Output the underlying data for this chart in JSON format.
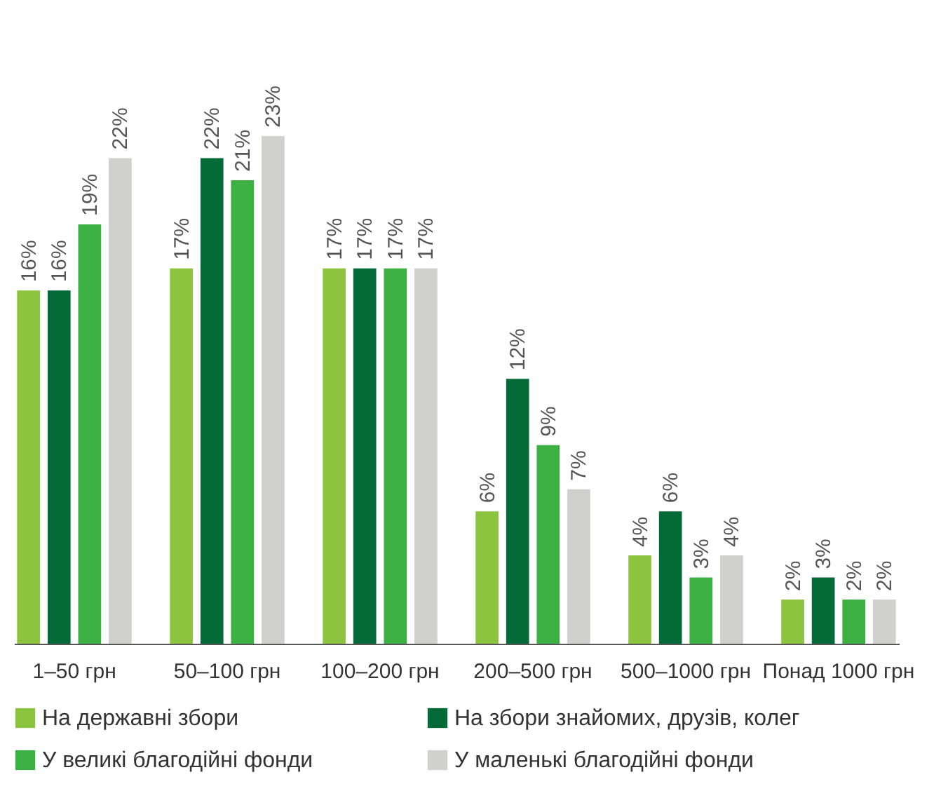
{
  "chart_data": {
    "type": "bar",
    "categories": [
      "1–50 грн",
      "50–100 грн",
      "100–200 грн",
      "200–500 грн",
      "500–1000 грн",
      "Понад 1000 грн"
    ],
    "series": [
      {
        "name": "На державні збори",
        "color": "#8cc43f",
        "values": [
          16,
          17,
          17,
          6,
          4,
          2
        ],
        "value_labels": [
          "16%",
          "17%",
          "17%",
          "6%",
          "4%",
          "2%"
        ]
      },
      {
        "name": "На збори знайомих, друзів, колег",
        "color": "#046a38",
        "values": [
          16,
          22,
          17,
          12,
          6,
          3
        ],
        "value_labels": [
          "16%",
          "22%",
          "17%",
          "12%",
          "6%",
          "3%"
        ]
      },
      {
        "name": "У великі благодійні фонди",
        "color": "#3cb043",
        "values": [
          19,
          21,
          17,
          9,
          3,
          2
        ],
        "value_labels": [
          "19%",
          "21%",
          "17%",
          "9%",
          "3%",
          "2%"
        ]
      },
      {
        "name": "У маленькі благодійні фонди",
        "color": "#d0d0ce",
        "values": [
          22,
          23,
          17,
          7,
          4,
          2
        ],
        "value_labels": [
          "22%",
          "23%",
          "17%",
          "7%",
          "4%",
          "2%"
        ]
      }
    ],
    "legend": "bottom",
    "grid": false
  }
}
